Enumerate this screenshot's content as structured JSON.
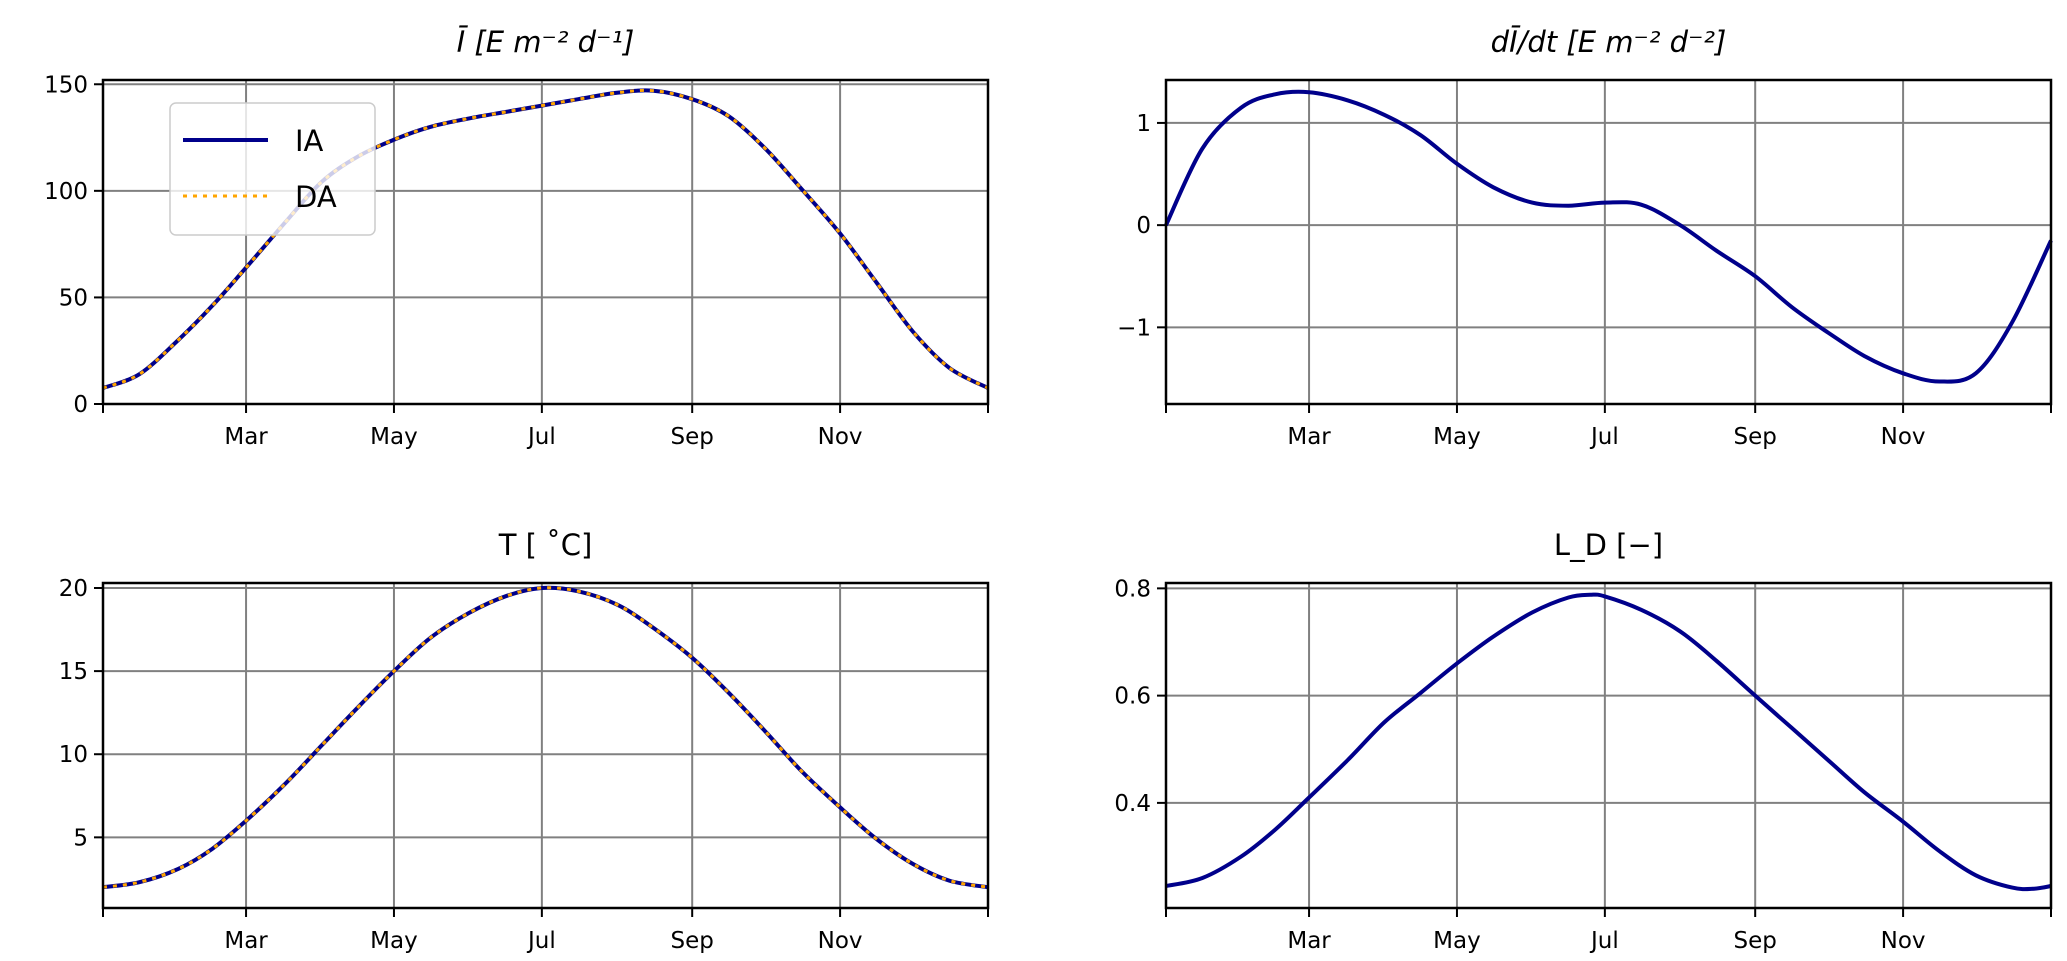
{
  "colors": {
    "IA": "#00008b",
    "DA": "#ffa500",
    "grid": "#808080"
  },
  "chart_data": [
    {
      "type": "line",
      "title": "Ī [E m⁻² d⁻¹]",
      "xlabel": "",
      "ylabel": "",
      "xlim_day_of_year": [
        0,
        365
      ],
      "x_ticks": [
        {
          "day": 0,
          "label": ""
        },
        {
          "day": 59,
          "label": "Mar"
        },
        {
          "day": 120,
          "label": "May"
        },
        {
          "day": 181,
          "label": "Jul"
        },
        {
          "day": 243,
          "label": "Sep"
        },
        {
          "day": 304,
          "label": "Nov"
        },
        {
          "day": 365,
          "label": ""
        }
      ],
      "ylim": [
        0,
        152
      ],
      "y_ticks": [
        {
          "v": 0,
          "label": "0"
        },
        {
          "v": 50,
          "label": "50"
        },
        {
          "v": 100,
          "label": "100"
        },
        {
          "v": 150,
          "label": "150"
        }
      ],
      "grid": true,
      "legend": {
        "placement": "upper-left",
        "entries": [
          "IA",
          "DA"
        ]
      },
      "x": [
        0,
        15,
        31,
        45,
        59,
        75,
        90,
        105,
        120,
        135,
        151,
        166,
        181,
        196,
        212,
        227,
        243,
        258,
        273,
        288,
        304,
        319,
        334,
        349,
        365
      ],
      "series": [
        {
          "name": "IA",
          "style": "solid",
          "values": [
            7.5,
            14,
            30,
            46,
            64,
            85,
            104,
            116,
            124,
            130,
            134,
            137,
            140,
            143,
            146,
            147,
            143,
            135,
            120,
            101,
            80,
            57,
            34,
            17,
            7.5
          ]
        },
        {
          "name": "DA",
          "style": "dotted",
          "values": [
            7.5,
            14,
            30,
            46,
            64,
            85,
            104,
            116,
            124,
            130,
            134,
            137,
            140,
            143,
            146,
            147,
            143,
            135,
            120,
            101,
            80,
            57,
            34,
            17,
            7.5
          ]
        }
      ]
    },
    {
      "type": "line",
      "title": "dĪ/dt [E m⁻² d⁻²]",
      "xlabel": "",
      "ylabel": "",
      "xlim_day_of_year": [
        0,
        365
      ],
      "x_ticks": [
        {
          "day": 0,
          "label": ""
        },
        {
          "day": 59,
          "label": "Mar"
        },
        {
          "day": 120,
          "label": "May"
        },
        {
          "day": 181,
          "label": "Jul"
        },
        {
          "day": 243,
          "label": "Sep"
        },
        {
          "day": 304,
          "label": "Nov"
        },
        {
          "day": 365,
          "label": ""
        }
      ],
      "ylim": [
        -1.75,
        1.42
      ],
      "y_ticks": [
        {
          "v": -1,
          "label": "−1"
        },
        {
          "v": 0,
          "label": "0"
        },
        {
          "v": 1,
          "label": "1"
        }
      ],
      "grid": true,
      "x": [
        0,
        15,
        31,
        45,
        59,
        75,
        90,
        105,
        120,
        135,
        151,
        166,
        181,
        196,
        212,
        227,
        243,
        258,
        273,
        288,
        304,
        319,
        334,
        349,
        365
      ],
      "series": [
        {
          "name": "IA",
          "style": "solid",
          "values": [
            0,
            0.75,
            1.15,
            1.28,
            1.3,
            1.22,
            1.08,
            0.88,
            0.6,
            0.37,
            0.22,
            0.19,
            0.22,
            0.2,
            0.0,
            -0.25,
            -0.5,
            -0.8,
            -1.05,
            -1.28,
            -1.45,
            -1.53,
            -1.45,
            -0.95,
            -0.15
          ]
        }
      ]
    },
    {
      "type": "line",
      "title": "T [ ˚C]",
      "xlabel": "",
      "ylabel": "",
      "xlim_day_of_year": [
        0,
        365
      ],
      "x_ticks": [
        {
          "day": 0,
          "label": ""
        },
        {
          "day": 59,
          "label": "Mar"
        },
        {
          "day": 120,
          "label": "May"
        },
        {
          "day": 181,
          "label": "Jul"
        },
        {
          "day": 243,
          "label": "Sep"
        },
        {
          "day": 304,
          "label": "Nov"
        },
        {
          "day": 365,
          "label": ""
        }
      ],
      "ylim": [
        0.75,
        20.3
      ],
      "y_ticks": [
        {
          "v": 5,
          "label": "5"
        },
        {
          "v": 10,
          "label": "10"
        },
        {
          "v": 15,
          "label": "15"
        },
        {
          "v": 20,
          "label": "20"
        }
      ],
      "grid": true,
      "x": [
        0,
        15,
        31,
        45,
        59,
        75,
        90,
        105,
        120,
        135,
        151,
        166,
        181,
        196,
        212,
        227,
        243,
        258,
        273,
        288,
        304,
        319,
        334,
        349,
        365
      ],
      "series": [
        {
          "name": "IA",
          "style": "solid",
          "values": [
            2.0,
            2.3,
            3.1,
            4.3,
            6.0,
            8.2,
            10.5,
            12.8,
            15.0,
            17.0,
            18.5,
            19.5,
            20.0,
            19.8,
            19.0,
            17.6,
            15.8,
            13.7,
            11.4,
            9.0,
            6.8,
            4.9,
            3.4,
            2.4,
            2.0
          ]
        },
        {
          "name": "DA",
          "style": "dotted",
          "values": [
            2.0,
            2.3,
            3.1,
            4.3,
            6.0,
            8.2,
            10.5,
            12.8,
            15.0,
            17.0,
            18.5,
            19.5,
            20.0,
            19.8,
            19.0,
            17.6,
            15.8,
            13.7,
            11.4,
            9.0,
            6.8,
            4.9,
            3.4,
            2.4,
            2.0
          ]
        }
      ]
    },
    {
      "type": "line",
      "title": "L_D [−]",
      "xlabel": "",
      "ylabel": "",
      "xlim_day_of_year": [
        0,
        365
      ],
      "x_ticks": [
        {
          "day": 0,
          "label": ""
        },
        {
          "day": 59,
          "label": "Mar"
        },
        {
          "day": 120,
          "label": "May"
        },
        {
          "day": 181,
          "label": "Jul"
        },
        {
          "day": 243,
          "label": "Sep"
        },
        {
          "day": 304,
          "label": "Nov"
        },
        {
          "day": 365,
          "label": ""
        }
      ],
      "ylim": [
        0.204,
        0.81
      ],
      "y_ticks": [
        {
          "v": 0.4,
          "label": "0.4"
        },
        {
          "v": 0.6,
          "label": "0.6"
        },
        {
          "v": 0.8,
          "label": "0.8"
        }
      ],
      "grid": true,
      "x": [
        0,
        15,
        31,
        45,
        59,
        75,
        90,
        105,
        120,
        135,
        151,
        166,
        175,
        181,
        196,
        212,
        227,
        243,
        258,
        273,
        288,
        304,
        319,
        334,
        349,
        358,
        365
      ],
      "series": [
        {
          "name": "IA",
          "style": "solid",
          "values": [
            0.245,
            0.26,
            0.3,
            0.35,
            0.41,
            0.48,
            0.55,
            0.605,
            0.66,
            0.71,
            0.755,
            0.783,
            0.788,
            0.785,
            0.76,
            0.72,
            0.665,
            0.6,
            0.54,
            0.48,
            0.42,
            0.365,
            0.31,
            0.265,
            0.242,
            0.24,
            0.245
          ]
        }
      ]
    }
  ]
}
